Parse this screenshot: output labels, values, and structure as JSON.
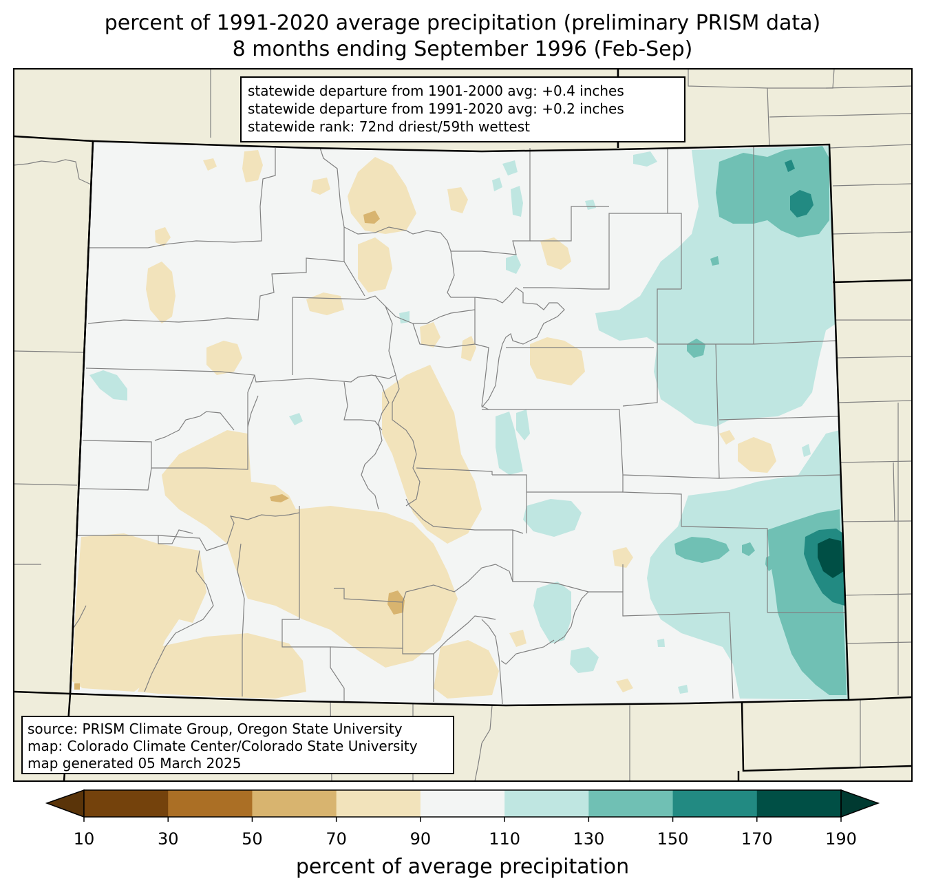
{
  "title": {
    "line1": "percent of 1991-2020 average precipitation (preliminary PRISM data)",
    "line2": "8 months ending September 1996 (Feb-Sep)"
  },
  "stats_box": {
    "line1": "statewide departure from 1901-2000 avg: +0.4 inches",
    "line2": "statewide departure from 1991-2020 avg: +0.2 inches",
    "line3": "statewide rank: 72nd driest/59th wettest"
  },
  "source_box": {
    "line1": "source: PRISM Climate Group, Oregon State University",
    "line2": "map: Colorado Climate Center/Colorado State University",
    "line3": "map generated 05 March 2025"
  },
  "colorbar": {
    "label": "percent of average precipitation",
    "ticks": [
      "10",
      "30",
      "50",
      "70",
      "90",
      "110",
      "130",
      "150",
      "170",
      "190"
    ],
    "below_color": "#543005",
    "above_color": "#003c30",
    "colors": [
      "#8c510a",
      "#bf812d",
      "#dfc27d",
      "#f6e8c3",
      "#f5f5f5",
      "#c7eae5",
      "#80cdc1",
      "#35978f",
      "#01665e"
    ],
    "colors_display": [
      "#74420c",
      "#ab6f25",
      "#d8b46f",
      "#f2e3bb",
      "#f3f5f4",
      "#bfe6e1",
      "#70c0b4",
      "#228a82",
      "#004f45"
    ]
  },
  "map_colors": {
    "background": "#efeddb",
    "state_fill": "#f3f5f4",
    "dry_light": "#f2e3bb",
    "dry_mid": "#d8b46f",
    "wet_light": "#bfe6e1",
    "wet_mid": "#70c0b4",
    "wet_dark": "#228a82",
    "wet_darkest": "#004f45",
    "county_lines": "#808080",
    "state_border": "#000000"
  }
}
